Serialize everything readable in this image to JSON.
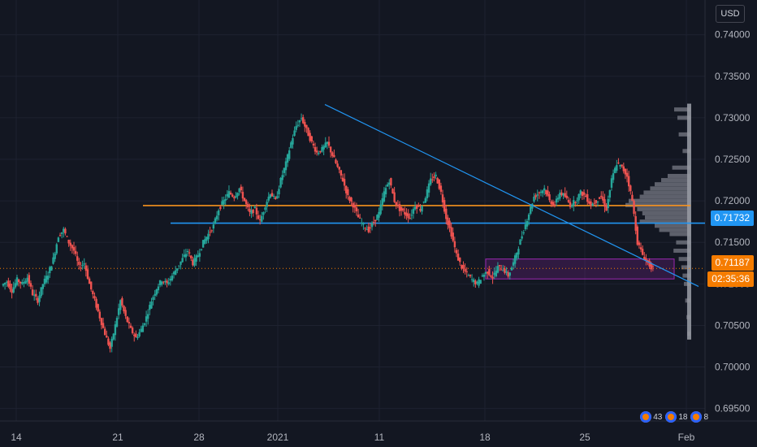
{
  "currency": "USD",
  "chart_data": {
    "type": "candlestick",
    "symbol_currency": "USD",
    "x_tick_labels": [
      "14",
      "21",
      "28",
      "2021",
      "11",
      "18",
      "25",
      "Feb"
    ],
    "y_tick_labels": [
      "0.74000",
      "0.73500",
      "0.73000",
      "0.72500",
      "0.72000",
      "0.71500",
      "0.71000",
      "0.70500",
      "0.70000",
      "0.69500"
    ],
    "ylim": [
      0.6935,
      0.7432
    ],
    "price_path": [
      0.7098,
      0.7103,
      0.7092,
      0.7105,
      0.71,
      0.7108,
      0.7088,
      0.708,
      0.71,
      0.7112,
      0.713,
      0.7158,
      0.7165,
      0.715,
      0.714,
      0.712,
      0.7125,
      0.71,
      0.708,
      0.706,
      0.704,
      0.7022,
      0.705,
      0.708,
      0.706,
      0.7045,
      0.7035,
      0.7045,
      0.706,
      0.708,
      0.7095,
      0.7105,
      0.71,
      0.711,
      0.712,
      0.713,
      0.714,
      0.7125,
      0.7135,
      0.715,
      0.716,
      0.717,
      0.719,
      0.72,
      0.721,
      0.7205,
      0.7215,
      0.72,
      0.7185,
      0.719,
      0.7175,
      0.7195,
      0.721,
      0.72,
      0.7225,
      0.7245,
      0.727,
      0.729,
      0.73,
      0.7285,
      0.727,
      0.7258,
      0.7262,
      0.727,
      0.7255,
      0.724,
      0.7225,
      0.7205,
      0.7195,
      0.718,
      0.717,
      0.7165,
      0.7175,
      0.7185,
      0.721,
      0.7225,
      0.72,
      0.719,
      0.7185,
      0.718,
      0.7195,
      0.719,
      0.7205,
      0.7225,
      0.723,
      0.721,
      0.718,
      0.716,
      0.7135,
      0.712,
      0.7112,
      0.7105,
      0.71,
      0.711,
      0.7115,
      0.7108,
      0.712,
      0.7118,
      0.711,
      0.7125,
      0.7145,
      0.7165,
      0.7185,
      0.7205,
      0.721,
      0.7215,
      0.72,
      0.7195,
      0.721,
      0.7205,
      0.7195,
      0.72,
      0.721,
      0.7205,
      0.7195,
      0.72,
      0.7205,
      0.719,
      0.7225,
      0.7245,
      0.724,
      0.723,
      0.72,
      0.715,
      0.7135,
      0.7125,
      0.7118
    ],
    "last_price": 0.71187,
    "horizontal_levels": [
      {
        "price": 0.71943,
        "color": "#f7931e"
      },
      {
        "price": 0.71732,
        "color": "#2196f3"
      }
    ],
    "current_price_line": 0.71187,
    "trendline": {
      "start": [
        0.0,
        0.7316
      ],
      "end": [
        1.0,
        0.7097
      ],
      "color": "#2196f3"
    },
    "zone": {
      "low": 0.7106,
      "high": 0.713,
      "color": "#9c27b0"
    },
    "volume_profile": {
      "color": "#787b86",
      "levels": [
        [
          0.731,
          0.25
        ],
        [
          0.73,
          0.2
        ],
        [
          0.728,
          0.18
        ],
        [
          0.726,
          0.12
        ],
        [
          0.724,
          0.28
        ],
        [
          0.723,
          0.35
        ],
        [
          0.7225,
          0.45
        ],
        [
          0.722,
          0.55
        ],
        [
          0.7215,
          0.62
        ],
        [
          0.721,
          0.72
        ],
        [
          0.7205,
          0.78
        ],
        [
          0.72,
          0.95
        ],
        [
          0.7195,
          1.0
        ],
        [
          0.719,
          0.82
        ],
        [
          0.7185,
          0.74
        ],
        [
          0.718,
          0.7
        ],
        [
          0.7175,
          0.78
        ],
        [
          0.717,
          0.55
        ],
        [
          0.7165,
          0.48
        ],
        [
          0.716,
          0.32
        ],
        [
          0.715,
          0.22
        ],
        [
          0.714,
          0.26
        ],
        [
          0.713,
          0.18
        ],
        [
          0.712,
          0.14
        ],
        [
          0.711,
          0.12
        ],
        [
          0.71,
          0.1
        ],
        [
          0.708,
          0.08
        ],
        [
          0.706,
          0.06
        ],
        [
          0.704,
          0.05
        ]
      ]
    },
    "price_tags": {
      "level": {
        "text": "0.71732",
        "color": "#2196f3"
      },
      "last": {
        "text": "0.71187",
        "color": "#f57c00"
      },
      "countdown": {
        "text": "02:35:36",
        "color": "#f57c00"
      }
    },
    "event_badges": [
      "43",
      "18",
      "8"
    ]
  }
}
